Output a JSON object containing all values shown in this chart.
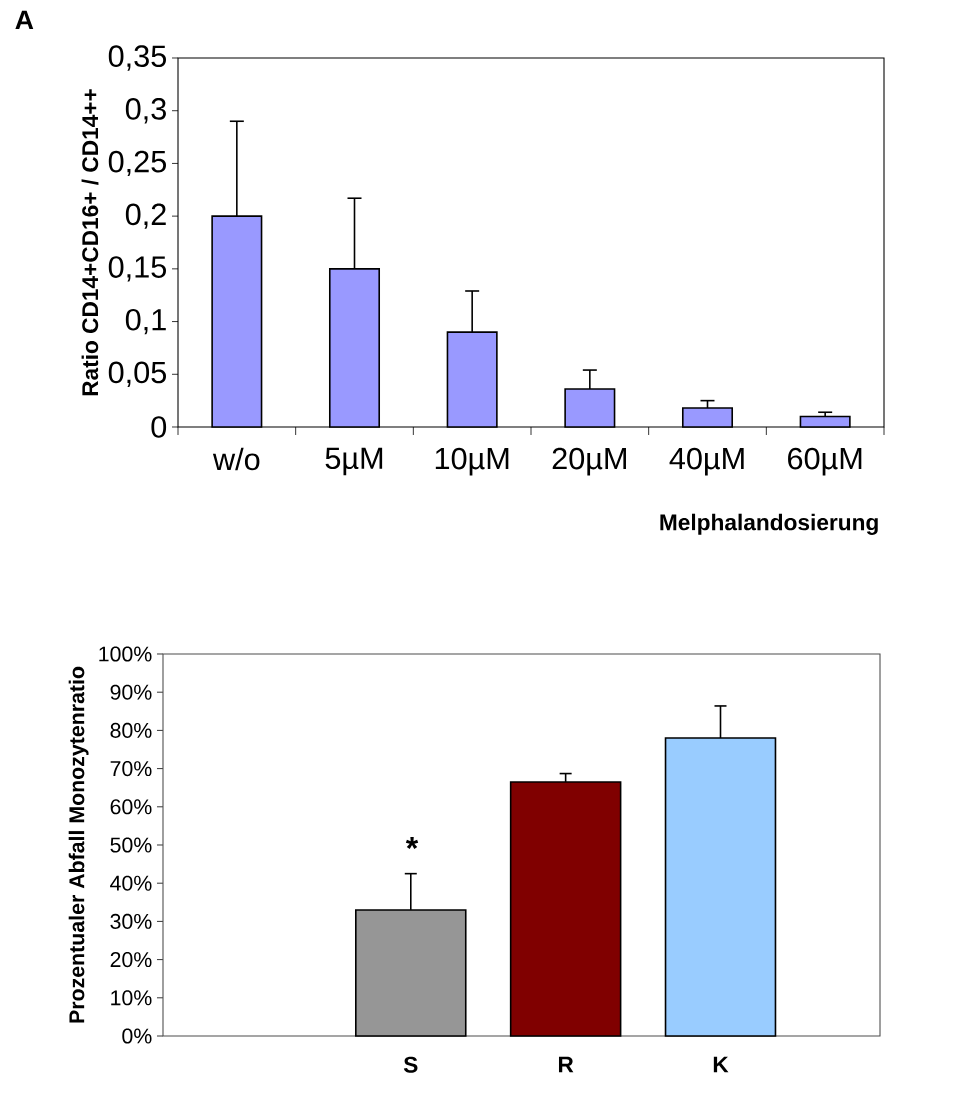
{
  "chart_data": [
    {
      "type": "bar",
      "title": "A",
      "ylabel": "Ratio CD14+CD16+ / CD14++",
      "xlabel": "Melphalandosierung",
      "categories": [
        "w/o",
        "5µM",
        "10µM",
        "20µM",
        "40µM",
        "60µM"
      ],
      "values": [
        0.2,
        0.15,
        0.09,
        0.036,
        0.018,
        0.01
      ],
      "errors": [
        [
          0.2,
          0.29
        ],
        [
          0.15,
          0.217
        ],
        [
          0.09,
          0.129
        ],
        [
          0.036,
          0.054
        ],
        [
          0.018,
          0.025
        ],
        [
          0.01,
          0.014
        ]
      ],
      "color": "#9999ff",
      "ylim": [
        0,
        0.35
      ],
      "yticks": [
        0,
        {
          "value": 0.05,
          "label": "0,05"
        },
        {
          "value": 0.1,
          "label": "0,1"
        },
        {
          "value": 0.15,
          "label": "0,15"
        },
        {
          "value": 0.2,
          "label": "0,2"
        },
        {
          "value": 0.25,
          "label": "0,25"
        },
        {
          "value": 0.3,
          "label": "0,3"
        },
        {
          "value": 0.35,
          "label": "0,35"
        }
      ]
    },
    {
      "type": "bar",
      "ylabel": "Prozentualer Abfall Monozytenratio",
      "categories": [
        "S",
        "R",
        "K"
      ],
      "values": [
        0.33,
        0.665,
        0.78
      ],
      "errors": [
        [
          0.33,
          0.425
        ],
        [
          0.665,
          0.687
        ],
        [
          0.78,
          0.864
        ]
      ],
      "colors": [
        "#969696",
        "#800000",
        "#99ccff"
      ],
      "ylim": [
        0,
        1
      ],
      "yticks": [
        {
          "value": 0,
          "label": "0%"
        },
        {
          "value": 0.1,
          "label": "10%"
        },
        {
          "value": 0.2,
          "label": "20%"
        },
        {
          "value": 0.3,
          "label": "30%"
        },
        {
          "value": 0.4,
          "label": "40%"
        },
        {
          "value": 0.5,
          "label": "50%"
        },
        {
          "value": 0.6,
          "label": "60%"
        },
        {
          "value": 0.7,
          "label": "70%"
        },
        {
          "value": 0.8,
          "label": "80%"
        },
        {
          "value": 0.9,
          "label": "90%"
        },
        {
          "value": 1,
          "label": "100%"
        }
      ],
      "annotations": [
        "*"
      ]
    }
  ]
}
